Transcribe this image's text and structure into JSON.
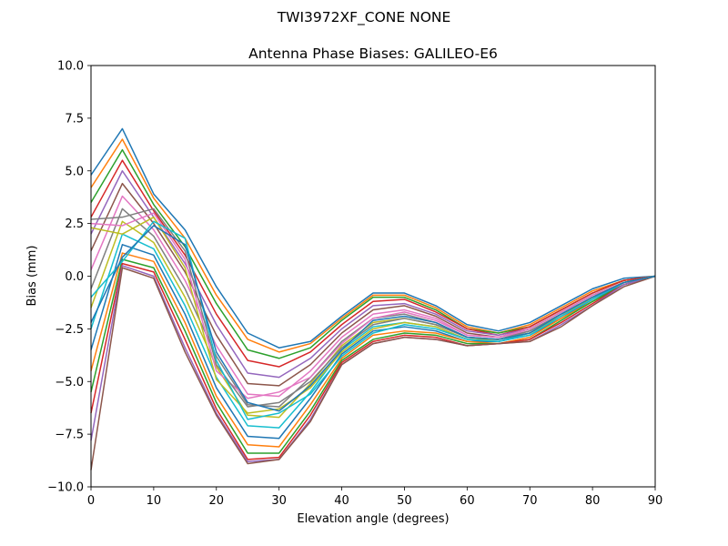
{
  "figure": {
    "suptitle": "TWI3972XF_CONE  NONE"
  },
  "chart_data": {
    "type": "line",
    "title": "Antenna Phase Biases: GALILEO-E6",
    "xlabel": "Elevation angle (degrees)",
    "ylabel": "Bias (mm)",
    "xlim": [
      0,
      90
    ],
    "ylim": [
      -10,
      10
    ],
    "x_ticks": [
      0,
      10,
      20,
      30,
      40,
      50,
      60,
      70,
      80,
      90
    ],
    "x_tick_labels": [
      "0",
      "10",
      "20",
      "30",
      "40",
      "50",
      "60",
      "70",
      "80",
      "90"
    ],
    "y_ticks": [
      -10,
      -7.5,
      -5,
      -2.5,
      0,
      2.5,
      5,
      7.5,
      10
    ],
    "y_tick_labels": [
      "−10.0",
      "−7.5",
      "−5.0",
      "−2.5",
      "0.0",
      "2.5",
      "5.0",
      "7.5",
      "10.0"
    ],
    "grid": false,
    "legend": "none",
    "colors": [
      "#1f77b4",
      "#ff7f0e",
      "#2ca02c",
      "#d62728",
      "#9467bd",
      "#8c564b",
      "#e377c2",
      "#7f7f7f",
      "#bcbd22",
      "#17becf"
    ],
    "x": [
      0,
      5,
      10,
      15,
      20,
      25,
      30,
      35,
      40,
      45,
      50,
      55,
      60,
      65,
      70,
      75,
      80,
      85,
      90
    ],
    "series": [
      {
        "values": [
          4.8,
          7.0,
          3.9,
          2.2,
          -0.5,
          -2.7,
          -3.4,
          -3.1,
          -1.9,
          -0.8,
          -0.8,
          -1.4,
          -2.3,
          -2.6,
          -2.2,
          -1.4,
          -0.6,
          -0.1,
          0.0
        ]
      },
      {
        "values": [
          4.2,
          6.5,
          3.7,
          1.8,
          -0.9,
          -3.0,
          -3.6,
          -3.2,
          -2.0,
          -0.9,
          -0.9,
          -1.5,
          -2.4,
          -2.7,
          -2.3,
          -1.5,
          -0.7,
          -0.2,
          0.0
        ]
      },
      {
        "values": [
          3.5,
          6.0,
          3.4,
          1.4,
          -1.3,
          -3.5,
          -3.9,
          -3.4,
          -2.1,
          -1.0,
          -1.0,
          -1.6,
          -2.5,
          -2.7,
          -2.4,
          -1.6,
          -0.8,
          -0.2,
          0.0
        ]
      },
      {
        "values": [
          2.8,
          5.5,
          3.1,
          1.0,
          -1.8,
          -4.0,
          -4.3,
          -3.6,
          -2.3,
          -1.2,
          -1.1,
          -1.7,
          -2.5,
          -2.8,
          -2.4,
          -1.6,
          -0.8,
          -0.2,
          0.0
        ]
      },
      {
        "values": [
          2.0,
          5.0,
          2.8,
          0.6,
          -2.3,
          -4.6,
          -4.8,
          -3.9,
          -2.5,
          -1.4,
          -1.3,
          -1.8,
          -2.6,
          -2.8,
          -2.5,
          -1.7,
          -0.9,
          -0.3,
          0.0
        ]
      },
      {
        "values": [
          1.2,
          4.4,
          2.5,
          0.2,
          -2.8,
          -5.1,
          -5.2,
          -4.2,
          -2.7,
          -1.6,
          -1.4,
          -1.9,
          -2.7,
          -2.9,
          -2.5,
          -1.7,
          -0.9,
          -0.3,
          0.0
        ]
      },
      {
        "values": [
          0.3,
          3.8,
          2.2,
          -0.2,
          -3.3,
          -5.6,
          -5.7,
          -4.5,
          -2.9,
          -1.8,
          -1.6,
          -2.0,
          -2.8,
          -2.9,
          -2.6,
          -1.8,
          -1.0,
          -0.3,
          0.0
        ]
      },
      {
        "values": [
          -0.6,
          3.2,
          1.9,
          -0.6,
          -3.8,
          -6.1,
          -6.2,
          -4.8,
          -3.1,
          -2.0,
          -1.8,
          -2.2,
          -2.9,
          -3.0,
          -2.6,
          -1.8,
          -1.0,
          -0.3,
          0.0
        ]
      },
      {
        "values": [
          -1.5,
          2.6,
          1.6,
          -1.0,
          -4.3,
          -6.6,
          -6.7,
          -5.1,
          -3.3,
          -2.2,
          -2.0,
          -2.3,
          -2.9,
          -3.0,
          -2.7,
          -1.9,
          -1.0,
          -0.3,
          0.0
        ]
      },
      {
        "values": [
          -2.5,
          2.0,
          1.3,
          -1.4,
          -4.8,
          -7.1,
          -7.2,
          -5.5,
          -3.5,
          -2.4,
          -2.2,
          -2.4,
          -3.0,
          -3.1,
          -2.7,
          -1.9,
          -1.1,
          -0.3,
          0.0
        ]
      },
      {
        "values": [
          -3.5,
          1.5,
          1.0,
          -1.8,
          -5.3,
          -7.6,
          -7.7,
          -5.8,
          -3.7,
          -2.6,
          -2.4,
          -2.6,
          -3.1,
          -3.1,
          -2.8,
          -2.0,
          -1.1,
          -0.4,
          0.0
        ]
      },
      {
        "values": [
          -4.5,
          1.1,
          0.7,
          -2.2,
          -5.7,
          -8.0,
          -8.1,
          -6.1,
          -3.9,
          -2.8,
          -2.6,
          -2.7,
          -3.1,
          -3.2,
          -2.9,
          -2.0,
          -1.2,
          -0.4,
          0.0
        ]
      },
      {
        "values": [
          -5.5,
          0.8,
          0.4,
          -2.6,
          -6.0,
          -8.4,
          -8.4,
          -6.4,
          -4.0,
          -3.0,
          -2.7,
          -2.8,
          -3.2,
          -3.2,
          -3.0,
          -2.1,
          -1.2,
          -0.4,
          0.0
        ]
      },
      {
        "values": [
          -6.5,
          0.6,
          0.2,
          -3.0,
          -6.3,
          -8.7,
          -8.6,
          -6.6,
          -4.1,
          -3.1,
          -2.8,
          -2.9,
          -3.3,
          -3.2,
          -3.0,
          -2.2,
          -1.3,
          -0.4,
          0.0
        ]
      },
      {
        "values": [
          -7.8,
          0.5,
          0.0,
          -3.4,
          -6.5,
          -8.8,
          -8.7,
          -6.8,
          -4.2,
          -3.2,
          -2.9,
          -3.0,
          -3.3,
          -3.2,
          -3.1,
          -2.3,
          -1.4,
          -0.4,
          0.0
        ]
      },
      {
        "values": [
          -9.2,
          0.4,
          -0.1,
          -3.6,
          -6.6,
          -8.9,
          -8.7,
          -6.9,
          -4.2,
          -3.2,
          -2.9,
          -3.0,
          -3.3,
          -3.2,
          -3.1,
          -2.4,
          -1.4,
          -0.5,
          0.0
        ]
      },
      {
        "values": [
          2.5,
          2.4,
          3.0,
          0.8,
          -4.5,
          -5.8,
          -5.5,
          -4.8,
          -3.2,
          -2.0,
          -1.7,
          -2.1,
          -2.8,
          -2.9,
          -2.5,
          -1.7,
          -0.9,
          -0.3,
          0.0
        ]
      },
      {
        "values": [
          2.7,
          2.8,
          3.2,
          1.2,
          -4.2,
          -6.2,
          -6.0,
          -5.0,
          -3.4,
          -2.3,
          -2.0,
          -2.3,
          -2.9,
          -3.0,
          -2.6,
          -1.8,
          -1.0,
          -0.3,
          0.0
        ]
      },
      {
        "values": [
          2.3,
          2.0,
          2.8,
          0.4,
          -4.9,
          -6.5,
          -6.3,
          -5.3,
          -3.6,
          -2.5,
          -2.2,
          -2.4,
          -3.0,
          -3.0,
          -2.7,
          -1.9,
          -1.0,
          -0.3,
          0.0
        ]
      },
      {
        "values": [
          -1.0,
          0.7,
          2.6,
          1.8,
          -4.0,
          -6.8,
          -6.5,
          -5.6,
          -3.8,
          -2.7,
          -2.3,
          -2.5,
          -3.0,
          -3.1,
          -2.8,
          -1.9,
          -1.1,
          -0.3,
          0.0
        ]
      },
      {
        "values": [
          -2.2,
          0.9,
          2.4,
          1.5,
          -3.6,
          -6.0,
          -6.4,
          -5.2,
          -3.5,
          -2.1,
          -1.9,
          -2.2,
          -2.9,
          -3.0,
          -2.7,
          -1.8,
          -1.0,
          -0.3,
          0.0
        ]
      }
    ]
  }
}
